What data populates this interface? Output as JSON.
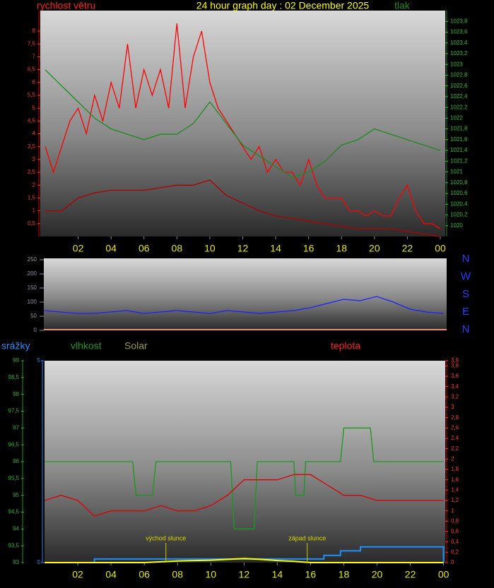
{
  "chart_data": [
    {
      "type": "line",
      "title": "24 hour graph day : 02 December 2025",
      "xlim": [
        -0.3,
        24.3
      ],
      "xticks": [
        {
          "value": 2,
          "label": "02"
        },
        {
          "value": 4,
          "label": "04"
        },
        {
          "value": 6,
          "label": "06"
        },
        {
          "value": 8,
          "label": "08"
        },
        10,
        12,
        14,
        16,
        18,
        20,
        22,
        {
          "value": 24,
          "label": "00"
        }
      ],
      "x": [
        0,
        1,
        2,
        3,
        4,
        5,
        6,
        7,
        8,
        9,
        10,
        11,
        12,
        13,
        14,
        15,
        16,
        17,
        18,
        19,
        20,
        21,
        22,
        23,
        24
      ],
      "ylim": [
        0,
        8.8
      ],
      "yticks": [
        {
          "value": 0.5,
          "label": "0,5"
        },
        1,
        {
          "value": 1.5,
          "label": "1,5"
        },
        2,
        {
          "value": 2.5,
          "label": "2,5"
        },
        3,
        {
          "value": 3.5,
          "label": "3,5"
        },
        4,
        {
          "value": 4.5,
          "label": "4,5"
        },
        5,
        {
          "value": 5.5,
          "label": "5,5"
        },
        6,
        {
          "value": 6.5,
          "label": "6,5"
        },
        7,
        {
          "value": 7.5,
          "label": "7,5"
        },
        8
      ],
      "y2lim": [
        1019.8,
        1024
      ],
      "y2ticks": [
        1020,
        {
          "value": 1020.2,
          "label": "1020,2"
        },
        {
          "value": 1020.4,
          "label": "1020,4"
        },
        {
          "value": 1020.6,
          "label": "1020,6"
        },
        {
          "value": 1020.8,
          "label": "1020,8"
        },
        1021,
        {
          "value": 1021.2,
          "label": "1021,2"
        },
        {
          "value": 1021.4,
          "label": "1021,4"
        },
        {
          "value": 1021.6,
          "label": "1021,6"
        },
        {
          "value": 1021.8,
          "label": "1021,8"
        },
        1022,
        {
          "value": 1022.2,
          "label": "1022,2"
        },
        {
          "value": 1022.4,
          "label": "1022,4"
        },
        {
          "value": 1022.6,
          "label": "1022,6"
        },
        {
          "value": 1022.8,
          "label": "1022,8"
        },
        1023,
        {
          "value": 1023.2,
          "label": "1023,2"
        },
        {
          "value": 1023.4,
          "label": "1023,4"
        },
        {
          "value": 1023.6,
          "label": "1023,6"
        },
        {
          "value": 1023.8,
          "label": "1023,8"
        }
      ],
      "series": [
        {
          "name": "rychlost větru",
          "color": "#ff0000",
          "x": [
            0,
            0.5,
            1,
            1.5,
            2,
            2.5,
            3,
            3.5,
            4,
            4.5,
            5,
            5.5,
            6,
            6.5,
            7,
            7.5,
            8,
            8.5,
            9,
            9.5,
            10,
            10.5,
            11,
            11.5,
            12,
            12.5,
            13,
            13.5,
            14,
            14.5,
            15,
            15.5,
            16,
            16.5,
            17,
            17.5,
            18,
            18.5,
            19,
            19.5,
            20,
            20.5,
            21,
            21.5,
            22,
            22.5,
            23,
            23.5,
            24
          ],
          "values": [
            3.5,
            2.5,
            3.5,
            4.5,
            5,
            4,
            5.5,
            4.5,
            6,
            5,
            7.5,
            5,
            6.5,
            5.5,
            6.5,
            5,
            8.3,
            5,
            7,
            8,
            6,
            5,
            4.5,
            4,
            3.5,
            3,
            3.5,
            2.5,
            3,
            2.5,
            2.5,
            2,
            3,
            2,
            1.5,
            1.5,
            1.5,
            1,
            1,
            0.8,
            1,
            0.8,
            0.8,
            1.5,
            2,
            1,
            0.5,
            0.5,
            0.3
          ]
        },
        {
          "color": "#b00000",
          "values": [
            1,
            1,
            1.5,
            1.7,
            1.8,
            1.8,
            1.8,
            1.9,
            2,
            2,
            2.2,
            1.6,
            1.3,
            1,
            0.8,
            0.7,
            0.6,
            0.5,
            0.4,
            0.3,
            0.3,
            0.3,
            0.2,
            0.1,
            0
          ]
        },
        {
          "name": "tlak",
          "color": "#1e8a1e",
          "axis": "y2",
          "values": [
            1022.9,
            1022.6,
            1022.3,
            1022.0,
            1021.8,
            1021.7,
            1021.6,
            1021.7,
            1021.7,
            1021.9,
            1022.3,
            1021.9,
            1021.5,
            1021.3,
            1021.1,
            1020.9,
            1021.0,
            1021.2,
            1021.5,
            1021.6,
            1021.8,
            1021.7,
            1021.6,
            1021.5,
            1021.4
          ]
        }
      ]
    },
    {
      "type": "line",
      "xlim": [
        0,
        24.2
      ],
      "x": [
        0,
        1,
        2,
        3,
        4,
        5,
        6,
        7,
        8,
        9,
        10,
        11,
        12,
        13,
        14,
        15,
        16,
        17,
        18,
        19,
        20,
        21,
        22,
        23,
        24
      ],
      "ylim": [
        0,
        255
      ],
      "yticks": [
        0,
        50,
        100,
        150,
        200,
        250
      ],
      "direction_labels": [
        "N",
        "W",
        "S",
        "E",
        "N"
      ],
      "series": [
        {
          "color": "#2020ff",
          "values": [
            70,
            65,
            60,
            60,
            65,
            70,
            60,
            65,
            70,
            65,
            60,
            70,
            65,
            60,
            65,
            70,
            80,
            95,
            110,
            105,
            120,
            100,
            75,
            65,
            60
          ]
        }
      ]
    },
    {
      "type": "line",
      "xlim": [
        0,
        24.1
      ],
      "xticks": [
        {
          "value": 2,
          "label": "02"
        },
        {
          "value": 4,
          "label": "04"
        },
        {
          "value": 6,
          "label": "06"
        },
        {
          "value": 8,
          "label": "08"
        },
        10,
        12,
        14,
        16,
        18,
        20,
        22,
        {
          "value": 24,
          "label": "00"
        }
      ],
      "x": [
        0,
        1,
        2,
        3,
        4,
        5,
        6,
        7,
        8,
        9,
        10,
        11,
        12,
        13,
        14,
        15,
        16,
        17,
        18,
        19,
        20,
        21,
        22,
        23,
        24
      ],
      "ylim": [
        93,
        99
      ],
      "yticks": [
        93,
        {
          "value": 93.5,
          "label": "93,5"
        },
        94,
        {
          "value": 94.5,
          "label": "94,5"
        },
        95,
        {
          "value": 95.5,
          "label": "95,5"
        },
        96,
        {
          "value": 96.5,
          "label": "96,5"
        },
        97,
        {
          "value": 97.5,
          "label": "97,5"
        },
        98,
        {
          "value": 98.5,
          "label": "98,5"
        },
        99
      ],
      "rain_lim": [
        0,
        5
      ],
      "rain_ticks": [
        0,
        5
      ],
      "y2lim": [
        0,
        3.9
      ],
      "y2ticks": [
        0,
        {
          "value": 0.2,
          "label": "0,2"
        },
        {
          "value": 0.4,
          "label": "0,4"
        },
        {
          "value": 0.6,
          "label": "0,6"
        },
        {
          "value": 0.8,
          "label": "0,8"
        },
        1,
        {
          "value": 1.2,
          "label": "1,2"
        },
        {
          "value": 1.4,
          "label": "1,4"
        },
        {
          "value": 1.6,
          "label": "1,6"
        },
        {
          "value": 1.8,
          "label": "1,8"
        },
        2,
        {
          "value": 2.2,
          "label": "2,2"
        },
        {
          "value": 2.4,
          "label": "2,4"
        },
        {
          "value": 2.6,
          "label": "2,6"
        },
        {
          "value": 2.8,
          "label": "2,8"
        },
        3,
        {
          "value": 3.2,
          "label": "3,2"
        },
        {
          "value": 3.4,
          "label": "3,4"
        },
        {
          "value": 3.6,
          "label": "3,6"
        },
        {
          "value": 3.8,
          "label": "3,8"
        },
        {
          "value": 3.9,
          "label": "3,9"
        }
      ],
      "annotations": [
        {
          "text": "východ slunce",
          "x": 7.3
        },
        {
          "text": "západ slunce",
          "x": 15.8
        }
      ],
      "series": [
        {
          "name": "srážky",
          "color": "#1e90ff",
          "axis": "rain",
          "x": [
            0,
            3,
            3,
            16.8,
            16.8,
            17.8,
            17.8,
            19,
            19,
            24,
            24
          ],
          "values": [
            0,
            0,
            0.09,
            0.09,
            0.18,
            0.18,
            0.29,
            0.29,
            0.39,
            0.39,
            0
          ]
        },
        {
          "name": "vlhkost",
          "color": "#1a9a1a",
          "x": [
            0,
            5.3,
            5.5,
            6.5,
            6.7,
            11.2,
            11.4,
            12.6,
            12.8,
            15,
            15.1,
            15.6,
            15.7,
            17.8,
            18,
            19.6,
            19.8,
            24
          ],
          "values": [
            96,
            96,
            95,
            95,
            96,
            96,
            94,
            94,
            96,
            96,
            95,
            95,
            96,
            96,
            97,
            97,
            96,
            96
          ]
        },
        {
          "name": "Solar",
          "color": "#ffff00",
          "axis": "rain",
          "values": [
            0,
            0,
            0,
            0,
            0,
            0,
            0,
            0.02,
            0.04,
            0.05,
            0.06,
            0.08,
            0.1,
            0.08,
            0.05,
            0.03,
            0,
            0,
            0,
            0,
            0,
            0,
            0,
            0,
            0
          ]
        },
        {
          "name": "teplota",
          "color": "#e00000",
          "axis": "y2",
          "values": [
            1.2,
            1.3,
            1.2,
            0.9,
            1.0,
            1.0,
            1.0,
            1.1,
            1.0,
            1.0,
            1.1,
            1.3,
            1.6,
            1.6,
            1.6,
            1.7,
            1.7,
            1.5,
            1.3,
            1.3,
            1.2,
            1.2,
            1.2,
            1.2,
            1.2
          ]
        }
      ]
    }
  ]
}
